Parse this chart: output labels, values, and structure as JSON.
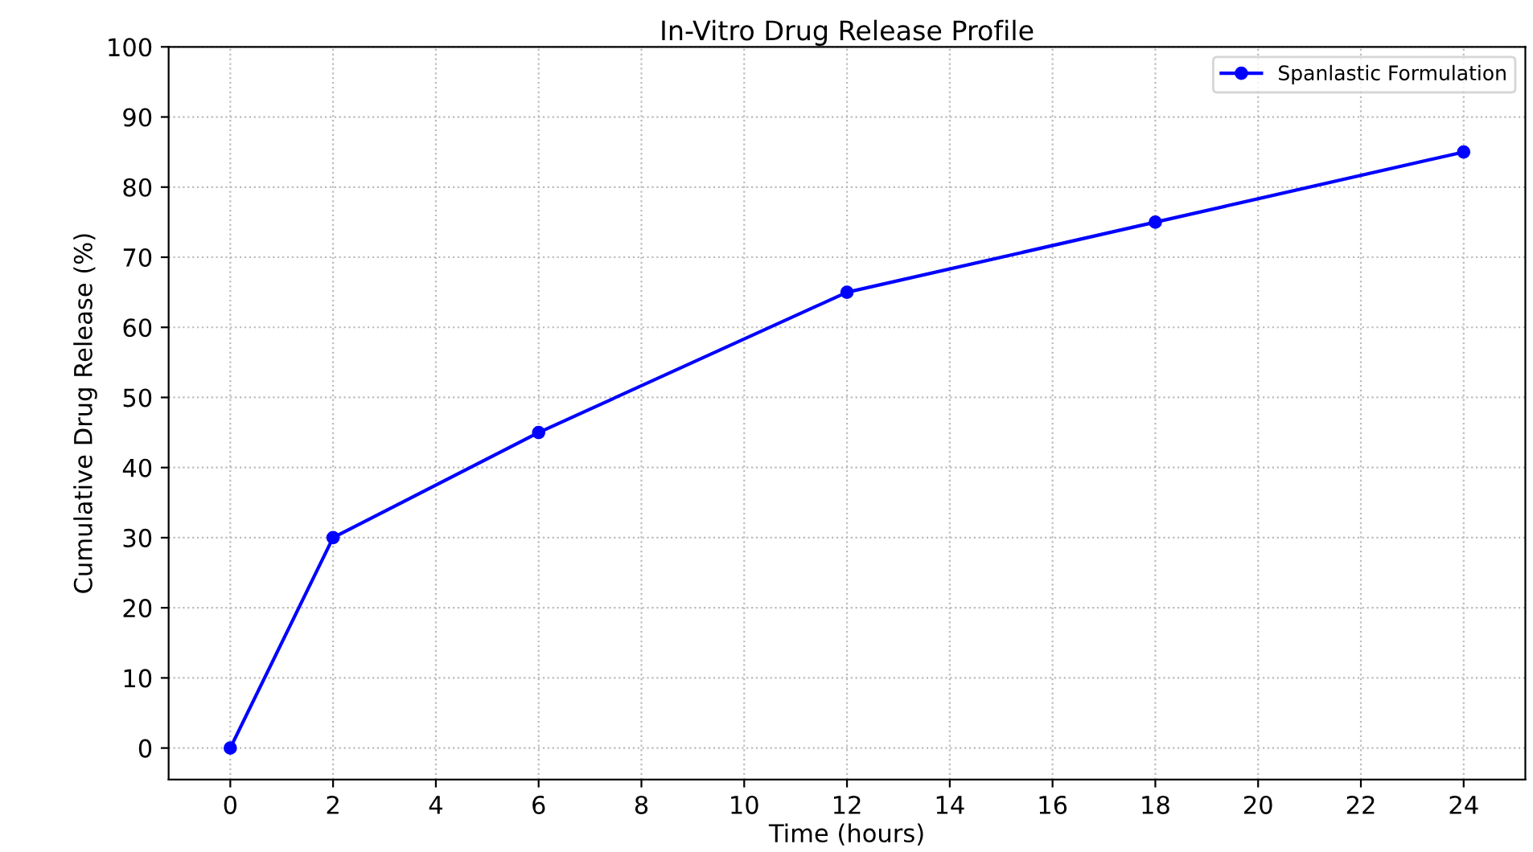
{
  "chart_data": {
    "type": "line",
    "title": "In-Vitro Drug Release Profile",
    "xlabel": "Time (hours)",
    "ylabel": "Cumulative Drug Release (%)",
    "x": [
      0,
      2,
      6,
      12,
      18,
      24
    ],
    "series": [
      {
        "name": "Spanlastic Formulation",
        "color": "#0000ff",
        "values": [
          0,
          30,
          45,
          65,
          75,
          85
        ]
      }
    ],
    "xlim": [
      -1.2,
      25.2
    ],
    "xticks": [
      0,
      2,
      4,
      6,
      8,
      10,
      12,
      14,
      16,
      18,
      20,
      22,
      24
    ],
    "ylim": [
      -4.5,
      100
    ],
    "yticks": [
      0,
      10,
      20,
      30,
      40,
      50,
      60,
      70,
      80,
      90,
      100
    ],
    "grid": true,
    "legend": "top right",
    "marker": "circle",
    "line_style": "solid"
  }
}
